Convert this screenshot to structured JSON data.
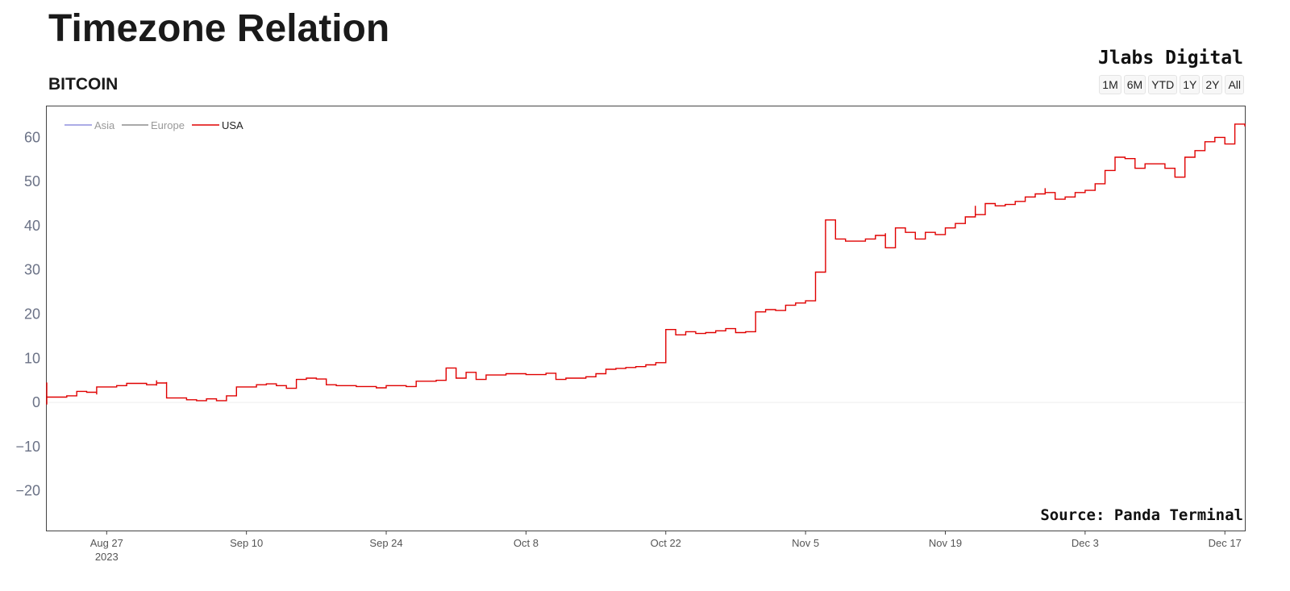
{
  "header": {
    "title": "Timezone Relation",
    "subtitle": "BITCOIN",
    "brand": "Jlabs Digital",
    "range_buttons": [
      "1M",
      "6M",
      "YTD",
      "1Y",
      "2Y",
      "All"
    ]
  },
  "chart_data": {
    "type": "line",
    "title": "Timezone Relation",
    "subtitle": "BITCOIN",
    "xlabel": "",
    "ylabel": "",
    "ylim": [
      -29,
      67
    ],
    "xlim": [
      "2023-08-21",
      "2023-12-19"
    ],
    "yticks": [
      60,
      50,
      40,
      30,
      20,
      10,
      0,
      -10,
      -20
    ],
    "ytick_labels": [
      "60",
      "50",
      "40",
      "30",
      "20",
      "10",
      "0",
      "−10",
      "−20"
    ],
    "xticks": [
      "2023-08-27",
      "2023-09-10",
      "2023-09-24",
      "2023-10-08",
      "2023-10-22",
      "2023-11-05",
      "2023-11-19",
      "2023-12-03",
      "2023-12-17"
    ],
    "xtick_labels": [
      "Aug 27",
      "Sep 10",
      "Sep 24",
      "Oct 8",
      "Oct 22",
      "Nov 5",
      "Nov 19",
      "Dec 3",
      "Dec 17"
    ],
    "xtick_sublabel": "2023",
    "grid": false,
    "legend_placement": "top-left",
    "source_note": "Source: Panda Terminal",
    "series": [
      {
        "name": "Asia",
        "color": "#7b7bd6",
        "points": []
      },
      {
        "name": "Europe",
        "color": "#777777",
        "points": []
      },
      {
        "name": "USA",
        "color": "#e00000",
        "points": [
          [
            "2023-08-21",
            -0.5
          ],
          [
            "2023-08-21",
            4.5
          ],
          [
            "2023-08-21",
            1.2
          ],
          [
            "2023-08-23",
            1.5
          ],
          [
            "2023-08-24",
            2.5
          ],
          [
            "2023-08-25",
            2.3
          ],
          [
            "2023-08-26",
            1.8
          ],
          [
            "2023-08-26",
            3.5
          ],
          [
            "2023-08-28",
            3.8
          ],
          [
            "2023-08-29",
            4.3
          ],
          [
            "2023-08-31",
            4.0
          ],
          [
            "2023-09-01",
            3.8
          ],
          [
            "2023-09-01",
            5.0
          ],
          [
            "2023-09-01",
            4.4
          ],
          [
            "2023-09-02",
            4.6
          ],
          [
            "2023-09-02",
            1.0
          ],
          [
            "2023-09-04",
            0.6
          ],
          [
            "2023-09-05",
            0.4
          ],
          [
            "2023-09-06",
            0.8
          ],
          [
            "2023-09-07",
            0.4
          ],
          [
            "2023-09-08",
            1.5
          ],
          [
            "2023-09-09",
            3.5
          ],
          [
            "2023-09-11",
            4.0
          ],
          [
            "2023-09-12",
            4.2
          ],
          [
            "2023-09-13",
            3.8
          ],
          [
            "2023-09-14",
            3.2
          ],
          [
            "2023-09-15",
            5.2
          ],
          [
            "2023-09-16",
            5.5
          ],
          [
            "2023-09-17",
            5.3
          ],
          [
            "2023-09-18",
            4.0
          ],
          [
            "2023-09-19",
            3.8
          ],
          [
            "2023-09-21",
            3.6
          ],
          [
            "2023-09-23",
            3.3
          ],
          [
            "2023-09-24",
            3.8
          ],
          [
            "2023-09-26",
            3.6
          ],
          [
            "2023-09-27",
            4.8
          ],
          [
            "2023-09-29",
            5.0
          ],
          [
            "2023-09-30",
            5.2
          ],
          [
            "2023-09-30",
            7.8
          ],
          [
            "2023-10-01",
            5.5
          ],
          [
            "2023-10-02",
            5.8
          ],
          [
            "2023-10-02",
            6.8
          ],
          [
            "2023-10-03",
            5.2
          ],
          [
            "2023-10-04",
            6.2
          ],
          [
            "2023-10-06",
            6.5
          ],
          [
            "2023-10-08",
            6.3
          ],
          [
            "2023-10-10",
            6.6
          ],
          [
            "2023-10-11",
            5.2
          ],
          [
            "2023-10-12",
            5.5
          ],
          [
            "2023-10-14",
            5.8
          ],
          [
            "2023-10-15",
            6.5
          ],
          [
            "2023-10-16",
            7.5
          ],
          [
            "2023-10-17",
            7.7
          ],
          [
            "2023-10-18",
            7.9
          ],
          [
            "2023-10-19",
            8.1
          ],
          [
            "2023-10-20",
            8.5
          ],
          [
            "2023-10-21",
            9.0
          ],
          [
            "2023-10-22",
            9.5
          ],
          [
            "2023-10-22",
            16.5
          ],
          [
            "2023-10-23",
            15.3
          ],
          [
            "2023-10-24",
            16.0
          ],
          [
            "2023-10-25",
            15.6
          ],
          [
            "2023-10-26",
            15.8
          ],
          [
            "2023-10-27",
            16.2
          ],
          [
            "2023-10-28",
            16.7
          ],
          [
            "2023-10-29",
            15.8
          ],
          [
            "2023-10-30",
            16.0
          ],
          [
            "2023-10-31",
            17.5
          ],
          [
            "2023-10-31",
            20.5
          ],
          [
            "2023-11-01",
            21.0
          ],
          [
            "2023-11-02",
            20.8
          ],
          [
            "2023-11-03",
            22.0
          ],
          [
            "2023-11-04",
            22.5
          ],
          [
            "2023-11-05",
            23.0
          ],
          [
            "2023-11-06",
            24.0
          ],
          [
            "2023-11-06",
            29.5
          ],
          [
            "2023-11-07",
            30.0
          ],
          [
            "2023-11-07",
            41.3
          ],
          [
            "2023-11-08",
            41.0
          ],
          [
            "2023-11-08",
            37.0
          ],
          [
            "2023-11-09",
            36.5
          ],
          [
            "2023-11-11",
            37.0
          ],
          [
            "2023-11-12",
            37.8
          ],
          [
            "2023-11-13",
            38.3
          ],
          [
            "2023-11-13",
            35.0
          ],
          [
            "2023-11-14",
            36.0
          ],
          [
            "2023-11-14",
            39.5
          ],
          [
            "2023-11-15",
            38.5
          ],
          [
            "2023-11-16",
            37.0
          ],
          [
            "2023-11-17",
            38.5
          ],
          [
            "2023-11-18",
            38.0
          ],
          [
            "2023-11-19",
            39.5
          ],
          [
            "2023-11-20",
            40.5
          ],
          [
            "2023-11-21",
            42.0
          ],
          [
            "2023-11-22",
            44.5
          ],
          [
            "2023-11-22",
            42.5
          ],
          [
            "2023-11-23",
            45.0
          ],
          [
            "2023-11-24",
            44.5
          ],
          [
            "2023-11-25",
            44.8
          ],
          [
            "2023-11-26",
            45.5
          ],
          [
            "2023-11-27",
            46.5
          ],
          [
            "2023-11-28",
            47.2
          ],
          [
            "2023-11-29",
            48.5
          ],
          [
            "2023-11-29",
            47.5
          ],
          [
            "2023-11-30",
            46.0
          ],
          [
            "2023-12-01",
            46.5
          ],
          [
            "2023-12-02",
            47.5
          ],
          [
            "2023-12-03",
            48.0
          ],
          [
            "2023-12-04",
            49.5
          ],
          [
            "2023-12-05",
            52.5
          ],
          [
            "2023-12-06",
            55.5
          ],
          [
            "2023-12-07",
            55.2
          ],
          [
            "2023-12-08",
            53.0
          ],
          [
            "2023-12-09",
            54.0
          ],
          [
            "2023-12-10",
            54.0
          ],
          [
            "2023-12-11",
            53.0
          ],
          [
            "2023-12-12",
            51.0
          ],
          [
            "2023-12-13",
            52.5
          ],
          [
            "2023-12-13",
            55.5
          ],
          [
            "2023-12-14",
            57.0
          ],
          [
            "2023-12-15",
            59.0
          ],
          [
            "2023-12-16",
            60.0
          ],
          [
            "2023-12-17",
            59.5
          ],
          [
            "2023-12-17",
            58.5
          ],
          [
            "2023-12-18",
            62.5
          ],
          [
            "2023-12-18",
            63.0
          ],
          [
            "2023-12-19",
            62.5
          ]
        ]
      }
    ]
  }
}
